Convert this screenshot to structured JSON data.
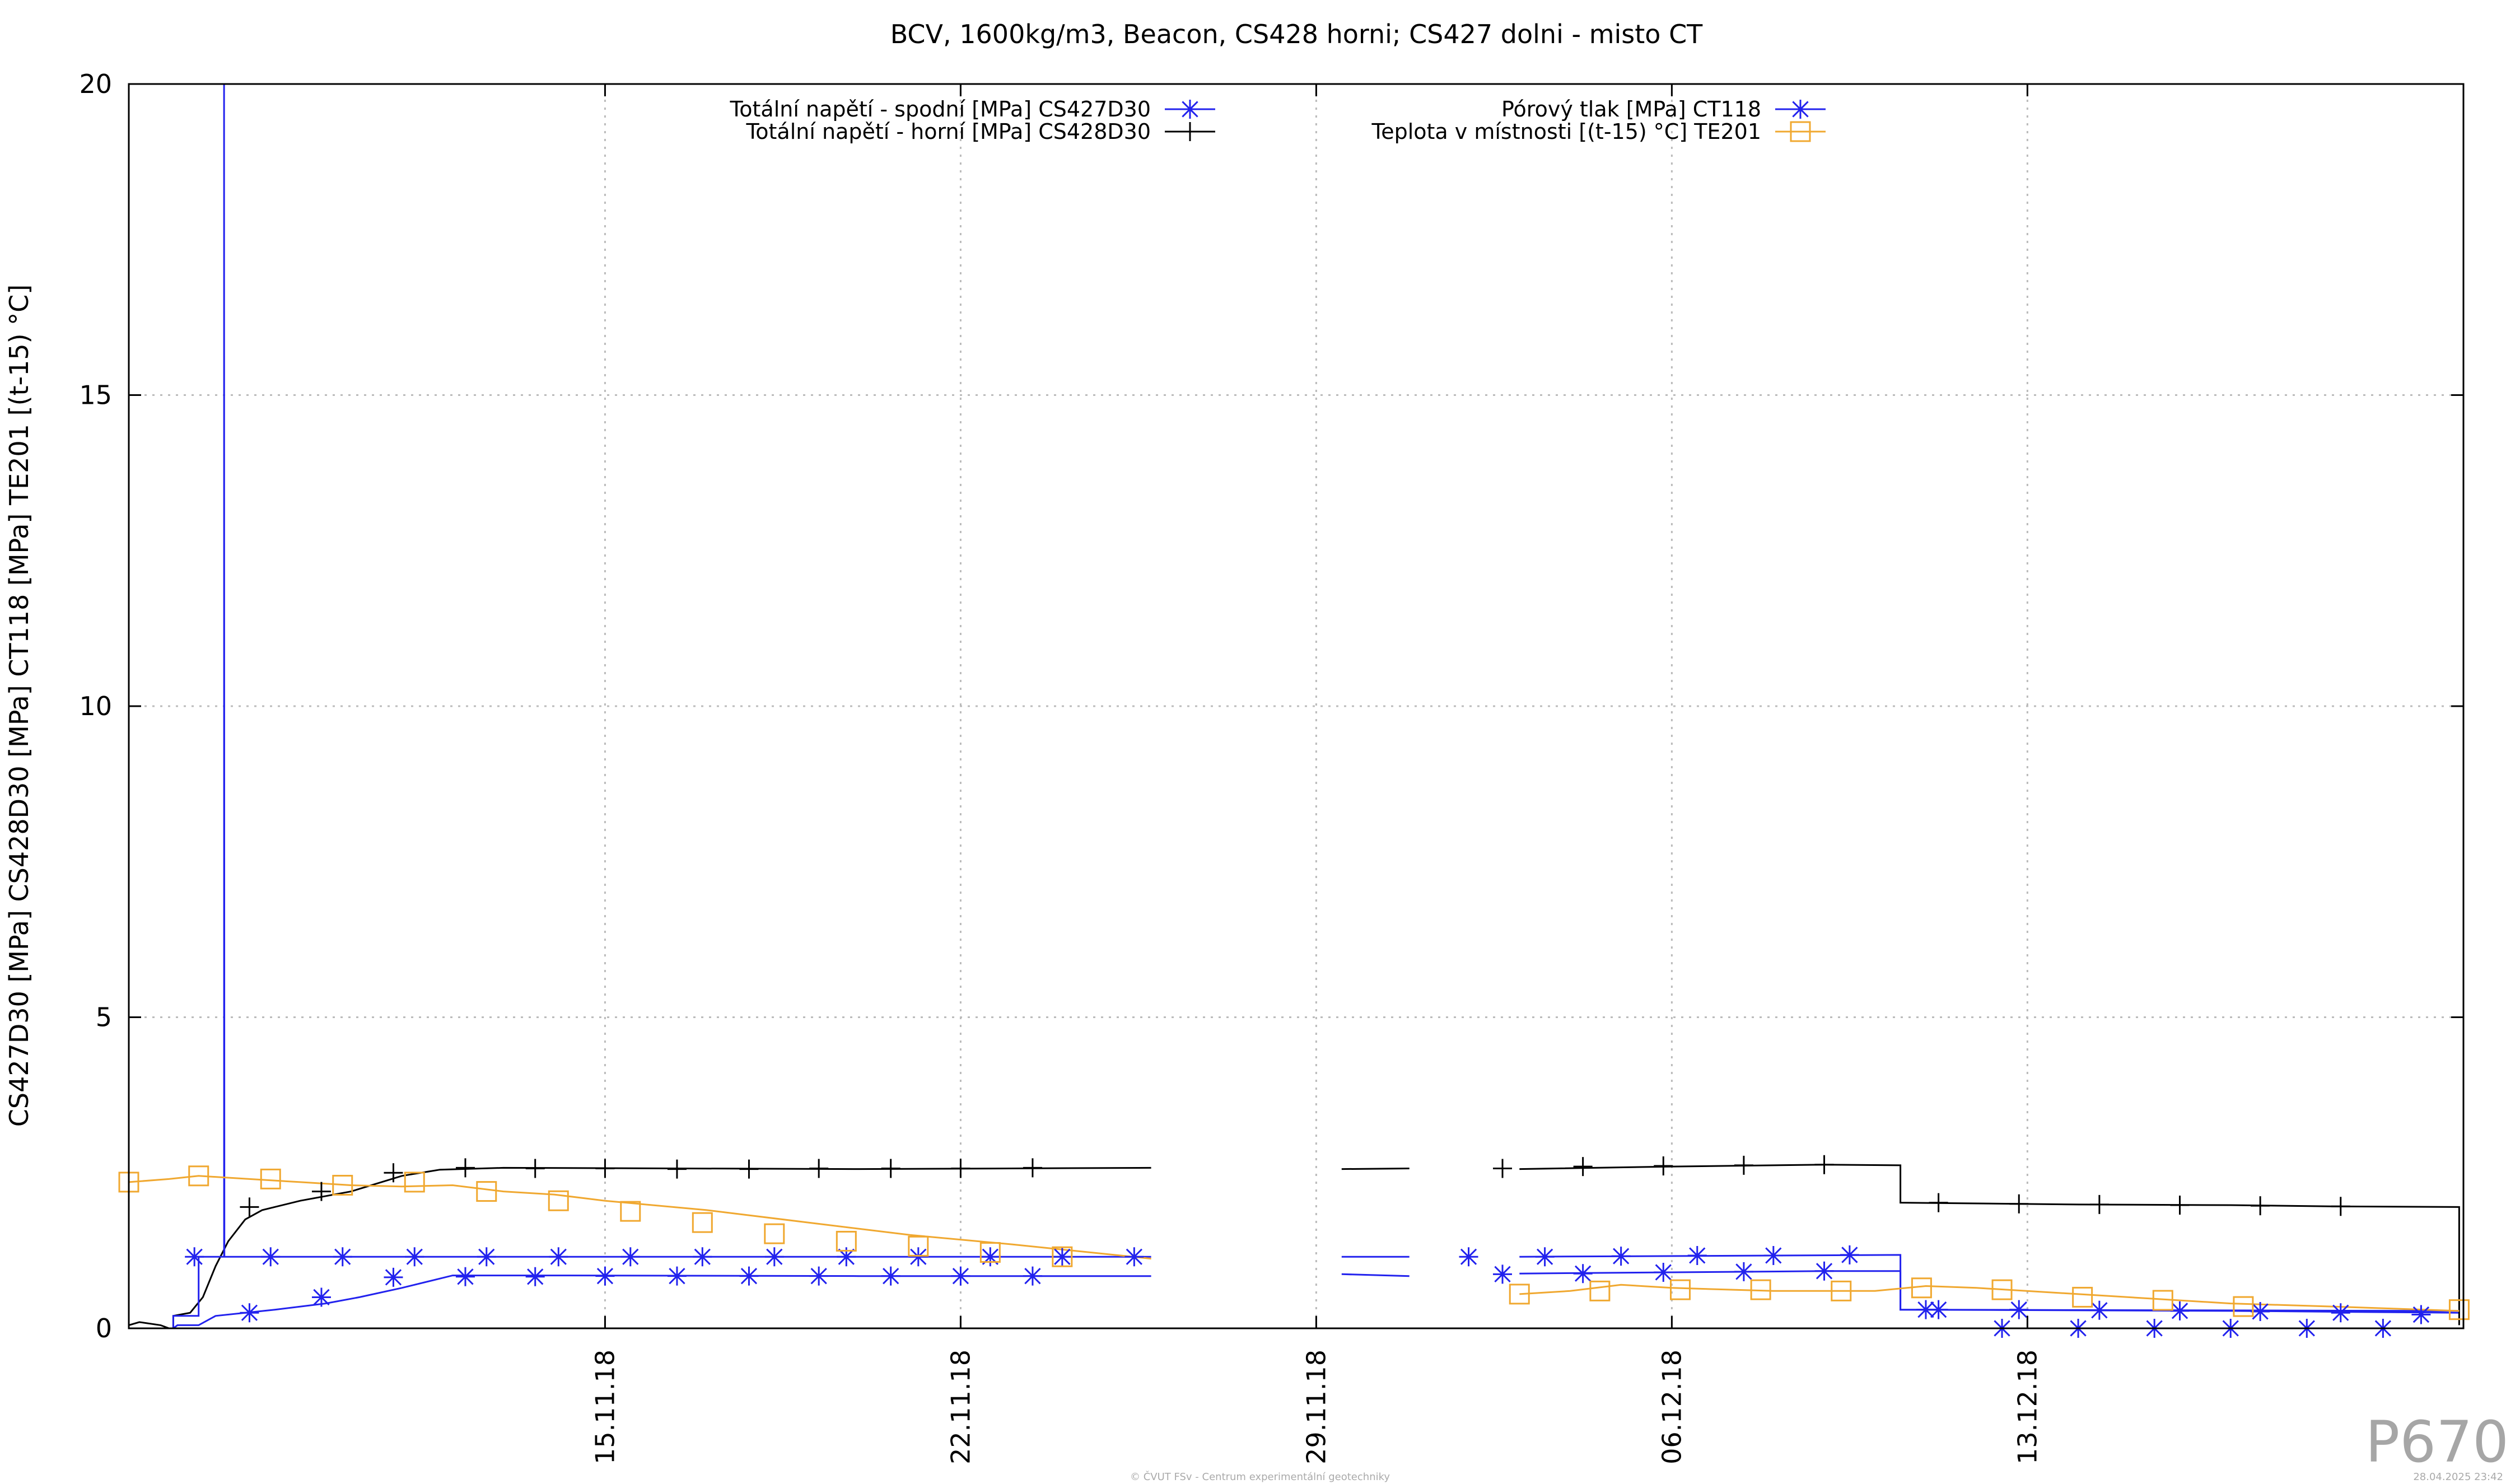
{
  "chart_data": {
    "type": "line",
    "title": "BCV, 1600kg/m3, Beacon, CS428 horni; CS427 dolni - misto CT",
    "ylabel": "CS427D30 [MPa] CS428D30 [MPa] CT118 [MPa] TE201 [(t-15) °C]",
    "xlabel": "",
    "ylim": [
      0,
      20
    ],
    "xlim": [
      "2018-11-05 15:00",
      "2018-12-21 14:00"
    ],
    "y_ticks": [
      "0",
      "5",
      "10",
      "15",
      "20"
    ],
    "x_ticks": [
      {
        "label": "15.11.18",
        "date": "2018-11-15"
      },
      {
        "label": "22.11.18",
        "date": "2018-11-22"
      },
      {
        "label": "29.11.18",
        "date": "2018-11-29"
      },
      {
        "label": "06.12.18",
        "date": "2018-12-06"
      },
      {
        "label": "13.12.18",
        "date": "2018-12-13"
      }
    ],
    "grid": true,
    "legend_position": "top",
    "series": [
      {
        "name": "Totální napětí - spodní [MPa] CS427D30",
        "color": "#2222ee",
        "marker": "star",
        "segments": [
          [
            [
              "2018-11-06 12:00",
              0.0
            ],
            [
              "2018-11-06 14:00",
              0.05
            ],
            [
              "2018-11-07 00:00",
              0.05
            ],
            [
              "2018-11-07 08:00",
              0.2
            ],
            [
              "2018-11-08 12:00",
              0.3
            ],
            [
              "2018-11-09 12:00",
              0.4
            ],
            [
              "2018-11-10 04:00",
              0.5
            ],
            [
              "2018-11-11 00:00",
              0.65
            ],
            [
              "2018-11-12 00:00",
              0.85
            ],
            [
              "2018-11-14 00:00",
              0.85
            ],
            [
              "2018-11-20 00:00",
              0.84
            ],
            [
              "2018-11-25 18:00",
              0.84
            ]
          ],
          [
            [
              "2018-11-29 12:00",
              0.87
            ],
            [
              "2018-11-30 20:00",
              0.84
            ]
          ],
          [
            [
              "2018-12-03 00:00",
              0.88
            ],
            [
              "2018-12-06 00:00",
              0.9
            ],
            [
              "2018-12-09 00:00",
              0.92
            ],
            [
              "2018-12-10 12:00",
              0.92
            ],
            [
              "2018-12-10 12:00",
              0.3
            ],
            [
              "2018-12-17 00:00",
              0.28
            ],
            [
              "2018-12-21 12:00",
              0.25
            ]
          ]
        ],
        "marker_points": [
          [
            "2018-11-08 00:00",
            0.25
          ],
          [
            "2018-11-09 10:00",
            0.5
          ],
          [
            "2018-11-10 20:00",
            0.82
          ],
          [
            "2018-11-12 06:00",
            0.83
          ],
          [
            "2018-11-13 15:00",
            0.83
          ],
          [
            "2018-11-15 00:00",
            0.84
          ],
          [
            "2018-11-16 10:00",
            0.84
          ],
          [
            "2018-11-17 20:00",
            0.84
          ],
          [
            "2018-11-19 05:00",
            0.84
          ],
          [
            "2018-11-20 15:00",
            0.84
          ],
          [
            "2018-11-22 00:00",
            0.84
          ],
          [
            "2018-11-23 10:00",
            0.84
          ],
          [
            "2018-12-02 16:00",
            0.87
          ],
          [
            "2018-12-04 06:00",
            0.88
          ],
          [
            "2018-12-05 20:00",
            0.9
          ],
          [
            "2018-12-07 10:00",
            0.91
          ],
          [
            "2018-12-09 00:00",
            0.92
          ],
          [
            "2018-12-11 06:00",
            0.3
          ],
          [
            "2018-12-12 20:00",
            0.3
          ],
          [
            "2018-12-14 10:00",
            0.29
          ],
          [
            "2018-12-16 00:00",
            0.28
          ],
          [
            "2018-12-17 14:00",
            0.27
          ],
          [
            "2018-12-19 04:00",
            0.25
          ],
          [
            "2018-12-20 18:00",
            0.22
          ]
        ]
      },
      {
        "name": "Totální napětí - horní [MPa] CS428D30",
        "color": "#000000",
        "marker": "plus",
        "segments": [
          [
            [
              "2018-11-05 15:00",
              0.05
            ],
            [
              "2018-11-05 20:00",
              0.1
            ],
            [
              "2018-11-06 06:00",
              0.05
            ],
            [
              "2018-11-06 10:00",
              0.0
            ],
            [
              "2018-11-06 12:00",
              0.0
            ],
            [
              "2018-11-06 12:00",
              0.2
            ],
            [
              "2018-11-06 20:00",
              0.25
            ],
            [
              "2018-11-07 02:00",
              0.5
            ],
            [
              "2018-11-07 08:00",
              1.0
            ],
            [
              "2018-11-07 14:00",
              1.4
            ],
            [
              "2018-11-07 22:00",
              1.75
            ],
            [
              "2018-11-08 06:00",
              1.9
            ],
            [
              "2018-11-09 00:00",
              2.05
            ],
            [
              "2018-11-10 00:00",
              2.2
            ],
            [
              "2018-11-11 00:00",
              2.45
            ],
            [
              "2018-11-11 18:00",
              2.55
            ],
            [
              "2018-11-13 00:00",
              2.58
            ],
            [
              "2018-11-20 00:00",
              2.56
            ],
            [
              "2018-11-25 18:00",
              2.58
            ]
          ],
          [
            [
              "2018-11-29 12:00",
              2.56
            ],
            [
              "2018-11-30 20:00",
              2.57
            ]
          ],
          [
            [
              "2018-12-03 00:00",
              2.56
            ],
            [
              "2018-12-06 00:00",
              2.6
            ],
            [
              "2018-12-09 00:00",
              2.63
            ],
            [
              "2018-12-10 12:00",
              2.62
            ],
            [
              "2018-12-10 12:00",
              2.02
            ],
            [
              "2018-12-14 00:00",
              1.99
            ],
            [
              "2018-12-17 00:00",
              1.98
            ],
            [
              "2018-12-19 00:00",
              1.96
            ],
            [
              "2018-12-21 12:00",
              1.95
            ],
            [
              "2018-12-21 12:00",
              0.05
            ]
          ]
        ],
        "marker_points": [
          [
            "2018-11-08 00:00",
            1.95
          ],
          [
            "2018-11-09 10:00",
            2.2
          ],
          [
            "2018-11-10 20:00",
            2.5
          ],
          [
            "2018-11-12 06:00",
            2.58
          ],
          [
            "2018-11-13 15:00",
            2.57
          ],
          [
            "2018-11-15 00:00",
            2.57
          ],
          [
            "2018-11-16 10:00",
            2.56
          ],
          [
            "2018-11-17 20:00",
            2.56
          ],
          [
            "2018-11-19 05:00",
            2.57
          ],
          [
            "2018-11-20 15:00",
            2.57
          ],
          [
            "2018-11-22 00:00",
            2.57
          ],
          [
            "2018-11-23 10:00",
            2.58
          ],
          [
            "2018-12-02 16:00",
            2.57
          ],
          [
            "2018-12-04 06:00",
            2.6
          ],
          [
            "2018-12-05 20:00",
            2.61
          ],
          [
            "2018-12-07 10:00",
            2.62
          ],
          [
            "2018-12-09 00:00",
            2.63
          ],
          [
            "2018-12-11 06:00",
            2.02
          ],
          [
            "2018-12-12 20:00",
            2.0
          ],
          [
            "2018-12-14 10:00",
            1.99
          ],
          [
            "2018-12-16 00:00",
            1.98
          ],
          [
            "2018-12-17 14:00",
            1.97
          ],
          [
            "2018-12-19 04:00",
            1.96
          ]
        ]
      },
      {
        "name": "Pórový tlak [MPa] CT118",
        "color": "#2222ee",
        "marker": "star",
        "segments": [
          [
            [
              "2018-11-06 12:00",
              0.0
            ],
            [
              "2018-11-06 12:00",
              0.2
            ],
            [
              "2018-11-07 00:00",
              0.2
            ],
            [
              "2018-11-07 00:00",
              1.15
            ],
            [
              "2018-11-07 12:00",
              1.15
            ],
            [
              "2018-11-07 12:00",
              20.0
            ],
            [
              "2018-11-07 12:10",
              1.15
            ],
            [
              "2018-11-25 18:00",
              1.15
            ]
          ],
          [
            [
              "2018-11-29 12:00",
              1.15
            ],
            [
              "2018-11-30 20:00",
              1.15
            ]
          ],
          [
            [
              "2018-12-03 00:00",
              1.15
            ],
            [
              "2018-12-10 12:00",
              1.18
            ],
            [
              "2018-12-10 12:00",
              0.3
            ],
            [
              "2018-12-21 12:00",
              0.28
            ]
          ]
        ],
        "marker_points": [
          [
            "2018-11-06 22:00",
            1.15
          ],
          [
            "2018-11-08 10:00",
            1.15
          ],
          [
            "2018-11-09 20:00",
            1.15
          ],
          [
            "2018-11-11 06:00",
            1.15
          ],
          [
            "2018-11-12 16:00",
            1.15
          ],
          [
            "2018-11-14 02:00",
            1.15
          ],
          [
            "2018-11-15 12:00",
            1.15
          ],
          [
            "2018-11-16 22:00",
            1.15
          ],
          [
            "2018-11-18 08:00",
            1.15
          ],
          [
            "2018-11-19 18:00",
            1.15
          ],
          [
            "2018-11-21 04:00",
            1.15
          ],
          [
            "2018-11-22 14:00",
            1.15
          ],
          [
            "2018-11-24 00:00",
            1.15
          ],
          [
            "2018-11-25 10:00",
            1.15
          ],
          [
            "2018-12-02 00:00",
            1.15
          ],
          [
            "2018-12-03 12:00",
            1.15
          ],
          [
            "2018-12-05 00:00",
            1.16
          ],
          [
            "2018-12-06 12:00",
            1.17
          ],
          [
            "2018-12-08 00:00",
            1.17
          ],
          [
            "2018-12-09 12:00",
            1.18
          ],
          [
            "2018-12-11 00:00",
            0.3
          ],
          [
            "2018-12-12 12:00",
            0.0
          ],
          [
            "2018-12-14 00:00",
            0.0
          ],
          [
            "2018-12-15 12:00",
            0.0
          ],
          [
            "2018-12-17 00:00",
            0.0
          ],
          [
            "2018-12-18 12:00",
            0.0
          ],
          [
            "2018-12-20 00:00",
            0.0
          ]
        ]
      },
      {
        "name": "Teplota v místnosti [(t-15) °C] TE201",
        "color": "#f0a830",
        "marker": "square",
        "segments": [
          [
            [
              "2018-11-05 15:00",
              2.35
            ],
            [
              "2018-11-06 10:00",
              2.4
            ],
            [
              "2018-11-07 00:00",
              2.45
            ],
            [
              "2018-11-08 00:00",
              2.4
            ],
            [
              "2018-11-09 00:00",
              2.35
            ],
            [
              "2018-11-10 00:00",
              2.3
            ],
            [
              "2018-11-11 00:00",
              2.28
            ],
            [
              "2018-11-12 00:00",
              2.3
            ],
            [
              "2018-11-13 00:00",
              2.2
            ],
            [
              "2018-11-14 00:00",
              2.15
            ],
            [
              "2018-11-15 00:00",
              2.05
            ],
            [
              "2018-11-17 00:00",
              1.9
            ],
            [
              "2018-11-19 00:00",
              1.7
            ],
            [
              "2018-11-21 00:00",
              1.5
            ],
            [
              "2018-11-23 00:00",
              1.35
            ],
            [
              "2018-11-25 18:00",
              1.12
            ]
          ],
          [
            [
              "2018-12-03 00:00",
              0.55
            ],
            [
              "2018-12-04 00:00",
              0.6
            ],
            [
              "2018-12-05 00:00",
              0.7
            ],
            [
              "2018-12-06 00:00",
              0.65
            ],
            [
              "2018-12-08 00:00",
              0.6
            ],
            [
              "2018-12-10 00:00",
              0.6
            ],
            [
              "2018-12-11 00:00",
              0.68
            ],
            [
              "2018-12-12 00:00",
              0.65
            ],
            [
              "2018-12-14 00:00",
              0.55
            ],
            [
              "2018-12-17 00:00",
              0.4
            ],
            [
              "2018-12-19 00:00",
              0.35
            ],
            [
              "2018-12-21 12:00",
              0.28
            ]
          ]
        ],
        "marker_points": [
          [
            "2018-11-05 15:00",
            2.35
          ],
          [
            "2018-11-07 00:00",
            2.45
          ],
          [
            "2018-11-08 10:00",
            2.4
          ],
          [
            "2018-11-09 20:00",
            2.3
          ],
          [
            "2018-11-11 06:00",
            2.35
          ],
          [
            "2018-11-12 16:00",
            2.2
          ],
          [
            "2018-11-14 02:00",
            2.05
          ],
          [
            "2018-11-15 12:00",
            1.88
          ],
          [
            "2018-11-16 22:00",
            1.7
          ],
          [
            "2018-11-18 08:00",
            1.52
          ],
          [
            "2018-11-19 18:00",
            1.4
          ],
          [
            "2018-11-21 04:00",
            1.32
          ],
          [
            "2018-11-22 14:00",
            1.22
          ],
          [
            "2018-11-24 00:00",
            1.15
          ],
          [
            "2018-12-03 00:00",
            0.55
          ],
          [
            "2018-12-04 14:00",
            0.6
          ],
          [
            "2018-12-06 04:00",
            0.62
          ],
          [
            "2018-12-07 18:00",
            0.62
          ],
          [
            "2018-12-09 08:00",
            0.6
          ],
          [
            "2018-12-10 22:00",
            0.65
          ],
          [
            "2018-12-12 12:00",
            0.62
          ],
          [
            "2018-12-14 02:00",
            0.5
          ],
          [
            "2018-12-15 16:00",
            0.45
          ],
          [
            "2018-12-17 06:00",
            0.35
          ],
          [
            "2018-12-21 12:00",
            0.3
          ]
        ]
      }
    ]
  },
  "page_label": "P670",
  "footer": {
    "credit": "© ČVUT FSv - Centrum experimentální geotechniky",
    "timestamp": "28.04.2025 23:42"
  }
}
